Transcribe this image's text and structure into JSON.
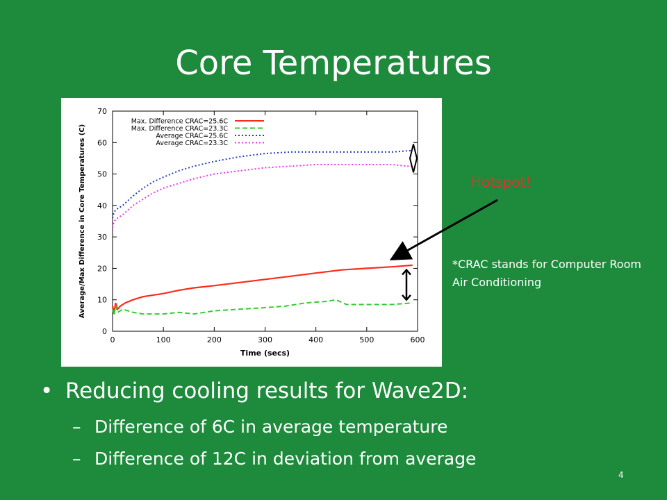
{
  "slide": {
    "title": "Core Temperatures",
    "callout": "Hotspot!",
    "note": "*CRAC stands for Computer Room Air Conditioning",
    "bullet_main": "Reducing cooling results for Wave2D:",
    "sub_bullets": [
      "Difference of 6C in average temperature",
      "Difference of 12C in deviation from average"
    ],
    "dash": "–",
    "page_number": "4"
  },
  "colors": {
    "background": "#1e8a3c",
    "callout": "#e0322b",
    "max_26": "#ff2a1a",
    "max_23": "#33cc33",
    "avg_26": "#1f3fbf",
    "avg_23": "#ee33ee"
  },
  "chart_data": {
    "type": "line",
    "xlabel": "Time (secs)",
    "ylabel": "Average/Max Difference in Core Temperatures (C)",
    "xlim": [
      0,
      600
    ],
    "ylim": [
      0,
      70
    ],
    "xticks": [
      0,
      100,
      200,
      300,
      400,
      500,
      600
    ],
    "yticks": [
      0,
      10,
      20,
      30,
      40,
      50,
      60,
      70
    ],
    "legend_position": "top-left",
    "series": [
      {
        "name": "Max. Difference CRAC=25.6C",
        "style": "solid",
        "color": "#ff2a1a",
        "points": [
          [
            0,
            8
          ],
          [
            3,
            6
          ],
          [
            6,
            9
          ],
          [
            10,
            7
          ],
          [
            15,
            8
          ],
          [
            25,
            9
          ],
          [
            40,
            10
          ],
          [
            60,
            11
          ],
          [
            80,
            11.5
          ],
          [
            100,
            12
          ],
          [
            130,
            13
          ],
          [
            160,
            13.8
          ],
          [
            200,
            14.5
          ],
          [
            250,
            15.5
          ],
          [
            300,
            16.5
          ],
          [
            350,
            17.5
          ],
          [
            400,
            18.5
          ],
          [
            450,
            19.5
          ],
          [
            500,
            20
          ],
          [
            550,
            20.5
          ],
          [
            590,
            21
          ]
        ]
      },
      {
        "name": "Max. Difference CRAC=23.3C",
        "style": "dashed",
        "color": "#33cc33",
        "points": [
          [
            0,
            7
          ],
          [
            3,
            5
          ],
          [
            6,
            8
          ],
          [
            10,
            6
          ],
          [
            20,
            7
          ],
          [
            40,
            6
          ],
          [
            60,
            5.5
          ],
          [
            80,
            5.5
          ],
          [
            100,
            5.5
          ],
          [
            130,
            6
          ],
          [
            160,
            5.5
          ],
          [
            200,
            6.5
          ],
          [
            250,
            7
          ],
          [
            300,
            7.5
          ],
          [
            340,
            8
          ],
          [
            380,
            9
          ],
          [
            420,
            9.5
          ],
          [
            440,
            10
          ],
          [
            460,
            8.5
          ],
          [
            500,
            8.5
          ],
          [
            550,
            8.5
          ],
          [
            590,
            9
          ]
        ]
      },
      {
        "name": "Average CRAC=25.6C",
        "style": "dotted",
        "color": "#1f3fbf",
        "points": [
          [
            0,
            36
          ],
          [
            3,
            38
          ],
          [
            10,
            39
          ],
          [
            20,
            40
          ],
          [
            40,
            43
          ],
          [
            60,
            45.5
          ],
          [
            80,
            47.5
          ],
          [
            100,
            49
          ],
          [
            130,
            51
          ],
          [
            160,
            52.5
          ],
          [
            200,
            54
          ],
          [
            250,
            55.5
          ],
          [
            300,
            56.5
          ],
          [
            350,
            57
          ],
          [
            400,
            57
          ],
          [
            450,
            57
          ],
          [
            500,
            57
          ],
          [
            550,
            57
          ],
          [
            590,
            57.5
          ]
        ]
      },
      {
        "name": "Average CRAC=23.3C",
        "style": "dotted",
        "color": "#ee33ee",
        "points": [
          [
            0,
            33
          ],
          [
            3,
            35
          ],
          [
            10,
            36
          ],
          [
            20,
            37
          ],
          [
            40,
            40
          ],
          [
            60,
            42
          ],
          [
            80,
            44
          ],
          [
            100,
            45.5
          ],
          [
            130,
            47
          ],
          [
            160,
            48.5
          ],
          [
            200,
            50
          ],
          [
            250,
            51
          ],
          [
            300,
            52
          ],
          [
            350,
            52.5
          ],
          [
            400,
            53
          ],
          [
            450,
            53
          ],
          [
            500,
            53
          ],
          [
            550,
            53
          ],
          [
            580,
            52.5
          ],
          [
            590,
            52.5
          ]
        ]
      }
    ]
  }
}
